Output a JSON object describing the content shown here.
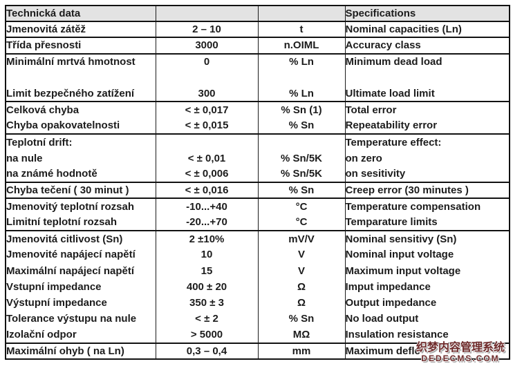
{
  "table": {
    "header": {
      "left": "Technická data",
      "right": "Specifications"
    },
    "columns": [
      "czech_label",
      "value",
      "unit",
      "english_label"
    ],
    "rows": [
      {
        "cz": "Jmenovitá zátěž",
        "value": "2 – 10",
        "unit": "t",
        "en": "Nominal capacities (Ln)",
        "sep": true
      },
      {
        "cz": "Třída přesnosti",
        "value": "3000",
        "unit": "n.OIML",
        "en": "Accuracy class",
        "sep": true
      },
      {
        "cz": "Minimální mrtvá hmotnost",
        "value": "0",
        "unit": "% Ln",
        "en": "Minimum dead load",
        "sep": false
      },
      {
        "cz": "",
        "value": "",
        "unit": "",
        "en": "",
        "sep": false
      },
      {
        "cz": "Limit bezpečného zatížení",
        "value": "300",
        "unit": "% Ln",
        "en": "Ultimate load limit",
        "sep": true
      },
      {
        "cz": "Celková chyba",
        "value": "< ± 0,017",
        "unit": "% Sn (1)",
        "en": "Total error",
        "sep": false
      },
      {
        "cz": "Chyba opakovatelnosti",
        "value": "< ± 0,015",
        "unit": "% Sn",
        "en": "Repeatability error",
        "sep": true
      },
      {
        "cz": "Teplotní drift:",
        "value": "",
        "unit": "",
        "en": "Temperature effect:",
        "sep": false
      },
      {
        "cz": "na nule",
        "value": "< ± 0,01",
        "unit": "% Sn/5K",
        "en": "on zero",
        "sep": false
      },
      {
        "cz": "na známé hodnotě",
        "value": "< ± 0,006",
        "unit": "% Sn/5K",
        "en": "on sesitivity",
        "sep": true
      },
      {
        "cz": "Chyba tečení ( 30 minut )",
        "value": "< ± 0,016",
        "unit": "% Sn",
        "en": "Creep error (30 minutes )",
        "sep": true
      },
      {
        "cz": "Jmenovitý teplotní rozsah",
        "value": "-10...+40",
        "unit": "°C",
        "en": "Temperature compensation",
        "sep": false
      },
      {
        "cz": "Limitní teplotní rozsah",
        "value": "-20...+70",
        "unit": "°C",
        "en": "Temparature limits",
        "sep": true
      },
      {
        "cz": "Jmenovitá citlivost ",
        "cz_bold": "(Sn)",
        "value": "2 ±10%",
        "unit": "mV/V",
        "en": "Nominal sensitivy ",
        "en_bold": "(Sn)",
        "sep": false
      },
      {
        "cz": "Jmenovité napájecí napětí",
        "value": "10",
        "unit": "V",
        "en": "Nominal input voltage",
        "sep": false
      },
      {
        "cz": "Maximální napájecí napětí",
        "value": "15",
        "unit": "V",
        "en": "Maximum input voltage",
        "sep": false
      },
      {
        "cz": "Vstupní impedance",
        "value": "400 ± 20",
        "unit": "Ω",
        "en": "Imput impedance",
        "sep": false
      },
      {
        "cz": "Výstupní impedance",
        "value": "350 ± 3",
        "unit": "Ω",
        "en": "Output impedance",
        "sep": false
      },
      {
        "cz": "Tolerance výstupu na nule",
        "value": "< ± 2",
        "unit": "% Sn",
        "en": "No load output",
        "sep": false
      },
      {
        "cz": "Izolační odpor",
        "value": "> 5000",
        "unit": "MΩ",
        "en": "Insulation resistance",
        "sep": true
      },
      {
        "cz": "Maximální ohyb ( na Ln)",
        "value": "0,3 – 0,4",
        "unit": "mm",
        "en": "Maximum defle",
        "sep": false
      }
    ]
  },
  "watermark": {
    "line1": "织梦内容管理系统",
    "line2": "DEDECMS.COM",
    "color": "#6e2a2a"
  },
  "colors": {
    "header_bg": "#e3e3e3",
    "border": "#111111",
    "text": "#1c1c1c",
    "page_bg": "#ffffff"
  }
}
